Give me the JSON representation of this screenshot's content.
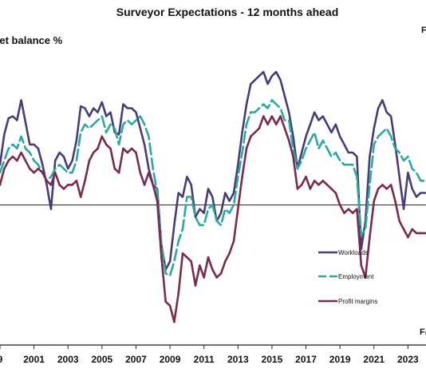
{
  "chart_data": {
    "type": "line",
    "title": "Surveyor Expectations - 12 months ahead",
    "ylabel": "Net balance %",
    "corner_top_label": "F",
    "corner_bottom_label": "Fa",
    "x_tick_labels": [
      "9",
      "2001",
      "2003",
      "2005",
      "2007",
      "2009",
      "2011",
      "2013",
      "2015",
      "2017",
      "2019",
      "2021",
      "2023"
    ],
    "x_range": [
      1999.0,
      2024.25
    ],
    "y_range": [
      -60,
      70
    ],
    "zero_line": true,
    "grid": false,
    "legend_position": "right",
    "series": [
      {
        "name": "Workloads",
        "color": "#4a3a78",
        "dash": "solid",
        "points": [
          [
            1999.0,
            20
          ],
          [
            1999.25,
            35
          ],
          [
            1999.5,
            43
          ],
          [
            1999.75,
            44
          ],
          [
            2000.0,
            42
          ],
          [
            2000.25,
            52
          ],
          [
            2000.5,
            41
          ],
          [
            2000.75,
            30
          ],
          [
            2001.0,
            30
          ],
          [
            2001.25,
            28
          ],
          [
            2001.5,
            20
          ],
          [
            2001.75,
            10
          ],
          [
            2002.0,
            -2
          ],
          [
            2002.25,
            22
          ],
          [
            2002.5,
            26
          ],
          [
            2002.75,
            24
          ],
          [
            2003.0,
            18
          ],
          [
            2003.25,
            22
          ],
          [
            2003.5,
            32
          ],
          [
            2003.75,
            49
          ],
          [
            2004.0,
            48
          ],
          [
            2004.25,
            44
          ],
          [
            2004.5,
            48
          ],
          [
            2004.75,
            46
          ],
          [
            2005.0,
            51
          ],
          [
            2005.25,
            44
          ],
          [
            2005.5,
            46
          ],
          [
            2005.75,
            36
          ],
          [
            2006.0,
            35
          ],
          [
            2006.25,
            50
          ],
          [
            2006.5,
            48
          ],
          [
            2006.75,
            48
          ],
          [
            2007.0,
            46
          ],
          [
            2007.25,
            38
          ],
          [
            2007.5,
            30
          ],
          [
            2007.75,
            18
          ],
          [
            2008.0,
            10
          ],
          [
            2008.25,
            8
          ],
          [
            2008.5,
            -20
          ],
          [
            2008.75,
            -32
          ],
          [
            2009.0,
            -28
          ],
          [
            2009.25,
            -10
          ],
          [
            2009.5,
            6
          ],
          [
            2009.75,
            4
          ],
          [
            2010.0,
            14
          ],
          [
            2010.25,
            10
          ],
          [
            2010.5,
            -6
          ],
          [
            2010.75,
            -2
          ],
          [
            2011.0,
            -4
          ],
          [
            2011.25,
            8
          ],
          [
            2011.5,
            4
          ],
          [
            2011.75,
            -8
          ],
          [
            2012.0,
            -4
          ],
          [
            2012.25,
            6
          ],
          [
            2012.5,
            2
          ],
          [
            2012.75,
            6
          ],
          [
            2013.0,
            20
          ],
          [
            2013.25,
            36
          ],
          [
            2013.5,
            50
          ],
          [
            2013.75,
            60
          ],
          [
            2014.0,
            62
          ],
          [
            2014.25,
            64
          ],
          [
            2014.5,
            66
          ],
          [
            2014.75,
            60
          ],
          [
            2015.0,
            64
          ],
          [
            2015.25,
            66
          ],
          [
            2015.5,
            62
          ],
          [
            2015.75,
            54
          ],
          [
            2016.0,
            46
          ],
          [
            2016.25,
            34
          ],
          [
            2016.5,
            18
          ],
          [
            2016.75,
            26
          ],
          [
            2017.0,
            34
          ],
          [
            2017.25,
            40
          ],
          [
            2017.5,
            46
          ],
          [
            2017.75,
            42
          ],
          [
            2018.0,
            44
          ],
          [
            2018.25,
            40
          ],
          [
            2018.5,
            36
          ],
          [
            2018.75,
            40
          ],
          [
            2019.0,
            34
          ],
          [
            2019.25,
            30
          ],
          [
            2019.5,
            26
          ],
          [
            2019.75,
            26
          ],
          [
            2020.0,
            24
          ],
          [
            2020.25,
            -22
          ],
          [
            2020.5,
            -8
          ],
          [
            2020.75,
            24
          ],
          [
            2021.0,
            38
          ],
          [
            2021.25,
            48
          ],
          [
            2021.5,
            52
          ],
          [
            2021.75,
            46
          ],
          [
            2022.0,
            44
          ],
          [
            2022.25,
            30
          ],
          [
            2022.5,
            14
          ],
          [
            2022.75,
            -2
          ],
          [
            2023.0,
            16
          ],
          [
            2023.25,
            8
          ],
          [
            2023.5,
            4
          ],
          [
            2023.75,
            6
          ],
          [
            2024.0,
            6
          ]
        ]
      },
      {
        "name": "Employment",
        "color": "#2aa9a0",
        "dash": "14,5",
        "points": [
          [
            1999.0,
            16
          ],
          [
            1999.25,
            22
          ],
          [
            1999.5,
            28
          ],
          [
            1999.75,
            30
          ],
          [
            2000.0,
            28
          ],
          [
            2000.25,
            34
          ],
          [
            2000.5,
            28
          ],
          [
            2000.75,
            26
          ],
          [
            2001.0,
            22
          ],
          [
            2001.25,
            20
          ],
          [
            2001.5,
            16
          ],
          [
            2001.75,
            12
          ],
          [
            2002.0,
            14
          ],
          [
            2002.25,
            18
          ],
          [
            2002.5,
            20
          ],
          [
            2002.75,
            18
          ],
          [
            2003.0,
            16
          ],
          [
            2003.25,
            16
          ],
          [
            2003.5,
            22
          ],
          [
            2003.75,
            36
          ],
          [
            2004.0,
            40
          ],
          [
            2004.25,
            38
          ],
          [
            2004.5,
            40
          ],
          [
            2004.75,
            42
          ],
          [
            2005.0,
            44
          ],
          [
            2005.25,
            36
          ],
          [
            2005.5,
            40
          ],
          [
            2005.75,
            38
          ],
          [
            2006.0,
            30
          ],
          [
            2006.25,
            40
          ],
          [
            2006.5,
            42
          ],
          [
            2006.75,
            40
          ],
          [
            2007.0,
            42
          ],
          [
            2007.25,
            44
          ],
          [
            2007.5,
            40
          ],
          [
            2007.75,
            34
          ],
          [
            2008.0,
            18
          ],
          [
            2008.25,
            6
          ],
          [
            2008.5,
            -20
          ],
          [
            2008.75,
            -34
          ],
          [
            2009.0,
            -35
          ],
          [
            2009.25,
            -28
          ],
          [
            2009.5,
            -18
          ],
          [
            2009.75,
            -12
          ],
          [
            2010.0,
            4
          ],
          [
            2010.25,
            4
          ],
          [
            2010.5,
            -6
          ],
          [
            2010.75,
            -10
          ],
          [
            2011.0,
            -10
          ],
          [
            2011.25,
            -2
          ],
          [
            2011.5,
            0
          ],
          [
            2011.75,
            -8
          ],
          [
            2012.0,
            -10
          ],
          [
            2012.25,
            -2
          ],
          [
            2012.5,
            -4
          ],
          [
            2012.75,
            0
          ],
          [
            2013.0,
            14
          ],
          [
            2013.25,
            26
          ],
          [
            2013.5,
            40
          ],
          [
            2013.75,
            46
          ],
          [
            2014.0,
            46
          ],
          [
            2014.25,
            48
          ],
          [
            2014.5,
            50
          ],
          [
            2014.75,
            48
          ],
          [
            2015.0,
            52
          ],
          [
            2015.25,
            50
          ],
          [
            2015.5,
            48
          ],
          [
            2015.75,
            42
          ],
          [
            2016.0,
            42
          ],
          [
            2016.25,
            28
          ],
          [
            2016.5,
            18
          ],
          [
            2016.75,
            22
          ],
          [
            2017.0,
            28
          ],
          [
            2017.25,
            32
          ],
          [
            2017.5,
            36
          ],
          [
            2017.75,
            28
          ],
          [
            2018.0,
            32
          ],
          [
            2018.25,
            28
          ],
          [
            2018.5,
            24
          ],
          [
            2018.75,
            26
          ],
          [
            2019.0,
            22
          ],
          [
            2019.25,
            20
          ],
          [
            2019.5,
            20
          ],
          [
            2019.75,
            20
          ],
          [
            2020.0,
            14
          ],
          [
            2020.25,
            -15
          ],
          [
            2020.5,
            -12
          ],
          [
            2020.75,
            10
          ],
          [
            2021.0,
            30
          ],
          [
            2021.25,
            34
          ],
          [
            2021.5,
            36
          ],
          [
            2021.75,
            38
          ],
          [
            2022.0,
            34
          ],
          [
            2022.25,
            28
          ],
          [
            2022.5,
            26
          ],
          [
            2022.75,
            22
          ],
          [
            2023.0,
            24
          ],
          [
            2023.25,
            18
          ],
          [
            2023.5,
            16
          ],
          [
            2023.75,
            12
          ],
          [
            2024.0,
            12
          ]
        ]
      },
      {
        "name": "Profit margins",
        "color": "#7a2a4e",
        "dash": "solid",
        "points": [
          [
            1999.0,
            10
          ],
          [
            1999.25,
            18
          ],
          [
            1999.5,
            22
          ],
          [
            1999.75,
            24
          ],
          [
            2000.0,
            22
          ],
          [
            2000.25,
            26
          ],
          [
            2000.5,
            22
          ],
          [
            2000.75,
            18
          ],
          [
            2001.0,
            16
          ],
          [
            2001.25,
            18
          ],
          [
            2001.5,
            16
          ],
          [
            2001.75,
            12
          ],
          [
            2002.0,
            10
          ],
          [
            2002.25,
            16
          ],
          [
            2002.5,
            10
          ],
          [
            2002.75,
            8
          ],
          [
            2003.0,
            10
          ],
          [
            2003.25,
            10
          ],
          [
            2003.5,
            12
          ],
          [
            2003.75,
            4
          ],
          [
            2004.0,
            12
          ],
          [
            2004.25,
            22
          ],
          [
            2004.5,
            26
          ],
          [
            2004.75,
            28
          ],
          [
            2005.0,
            34
          ],
          [
            2005.25,
            30
          ],
          [
            2005.5,
            28
          ],
          [
            2005.75,
            18
          ],
          [
            2006.0,
            16
          ],
          [
            2006.25,
            28
          ],
          [
            2006.5,
            26
          ],
          [
            2006.75,
            28
          ],
          [
            2007.0,
            26
          ],
          [
            2007.25,
            16
          ],
          [
            2007.5,
            10
          ],
          [
            2007.75,
            16
          ],
          [
            2008.0,
            10
          ],
          [
            2008.25,
            2
          ],
          [
            2008.5,
            -26
          ],
          [
            2008.75,
            -48
          ],
          [
            2009.0,
            -50
          ],
          [
            2009.25,
            -58
          ],
          [
            2009.5,
            -44
          ],
          [
            2009.75,
            -24
          ],
          [
            2010.0,
            -26
          ],
          [
            2010.25,
            -28
          ],
          [
            2010.5,
            -40
          ],
          [
            2010.75,
            -30
          ],
          [
            2011.0,
            -36
          ],
          [
            2011.25,
            -26
          ],
          [
            2011.5,
            -32
          ],
          [
            2011.75,
            -36
          ],
          [
            2012.0,
            -34
          ],
          [
            2012.25,
            -28
          ],
          [
            2012.5,
            -24
          ],
          [
            2012.75,
            -18
          ],
          [
            2013.0,
            -2
          ],
          [
            2013.25,
            14
          ],
          [
            2013.5,
            28
          ],
          [
            2013.75,
            34
          ],
          [
            2014.0,
            36
          ],
          [
            2014.25,
            38
          ],
          [
            2014.5,
            44
          ],
          [
            2014.75,
            40
          ],
          [
            2015.0,
            44
          ],
          [
            2015.25,
            40
          ],
          [
            2015.5,
            44
          ],
          [
            2015.75,
            38
          ],
          [
            2016.0,
            32
          ],
          [
            2016.25,
            24
          ],
          [
            2016.5,
            8
          ],
          [
            2016.75,
            10
          ],
          [
            2017.0,
            14
          ],
          [
            2017.25,
            8
          ],
          [
            2017.5,
            12
          ],
          [
            2017.75,
            10
          ],
          [
            2018.0,
            12
          ],
          [
            2018.25,
            10
          ],
          [
            2018.5,
            8
          ],
          [
            2018.75,
            6
          ],
          [
            2019.0,
            0
          ],
          [
            2019.25,
            -4
          ],
          [
            2019.5,
            -2
          ],
          [
            2019.75,
            -4
          ],
          [
            2020.0,
            -2
          ],
          [
            2020.25,
            -30
          ],
          [
            2020.5,
            -36
          ],
          [
            2020.75,
            -16
          ],
          [
            2021.0,
            2
          ],
          [
            2021.25,
            8
          ],
          [
            2021.5,
            10
          ],
          [
            2021.75,
            8
          ],
          [
            2022.0,
            10
          ],
          [
            2022.25,
            2
          ],
          [
            2022.5,
            -8
          ],
          [
            2022.75,
            -12
          ],
          [
            2023.0,
            -16
          ],
          [
            2023.25,
            -12
          ],
          [
            2023.5,
            -14
          ],
          [
            2023.75,
            -14
          ],
          [
            2024.0,
            -14
          ]
        ]
      }
    ]
  }
}
